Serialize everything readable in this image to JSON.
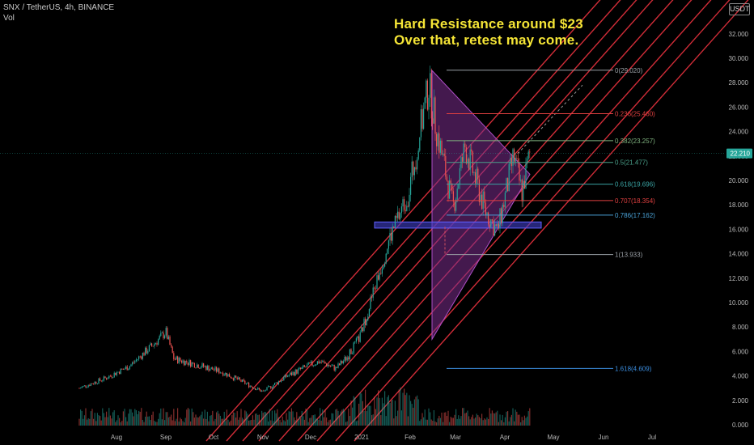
{
  "header": {
    "symbol": "SNX / TetherUS, 4h, BINANCE",
    "volume_label": "Vol",
    "currency_badge": "USDT"
  },
  "annotation": {
    "line1": "Hard Resistance around $23",
    "line2": "Over that, retest may come."
  },
  "colors": {
    "background": "#000000",
    "channel_lines": "#e8323f",
    "candle_up": "#26a69a",
    "candle_down": "#ef5350",
    "triangle_fill": "#7b2d8e",
    "support_zone": "#3f3fc8",
    "annotation_text": "#f5e536",
    "price_badge": "#26a69a"
  },
  "chart_data": {
    "type": "candlestick",
    "symbol": "SNX / TetherUS",
    "timeframe": "4h",
    "exchange": "BINANCE",
    "x_tick_labels": [
      "Aug",
      "Sep",
      "Oct",
      "Nov",
      "Dec",
      "2021",
      "Feb",
      "Mar",
      "Apr",
      "May",
      "Jun",
      "Jul"
    ],
    "y_tick_labels": [
      "0.000",
      "2.000",
      "4.000",
      "6.000",
      "8.000",
      "10.000",
      "12.000",
      "14.000",
      "16.000",
      "18.000",
      "20.000",
      "22.000",
      "24.000",
      "26.000",
      "28.000",
      "30.000",
      "32.000"
    ],
    "ylim": [
      0,
      33.5
    ],
    "current_price_label": "22.210",
    "current_price": 22.21,
    "price_path": [
      [
        "Jul",
        3.0
      ],
      [
        "Aug",
        3.8
      ],
      [
        "Aug",
        4.8
      ],
      [
        "Sep",
        6.6
      ],
      [
        "Sep",
        7.6
      ],
      [
        "Sep",
        5.4
      ],
      [
        "Oct",
        4.8
      ],
      [
        "Oct",
        4.3
      ],
      [
        "Oct",
        3.5
      ],
      [
        "Nov",
        2.7
      ],
      [
        "Nov",
        4.0
      ],
      [
        "Nov",
        4.8
      ],
      [
        "Dec",
        5.2
      ],
      [
        "Dec",
        4.6
      ],
      [
        "Dec",
        5.6
      ],
      [
        "2021",
        7.2
      ],
      [
        "2021",
        10.5
      ],
      [
        "2021",
        15.0
      ],
      [
        "Feb",
        19.0
      ],
      [
        "Feb",
        27.8
      ],
      [
        "Feb",
        24.0
      ],
      [
        "Mar",
        17.8
      ],
      [
        "Mar",
        22.8
      ],
      [
        "Mar",
        17.5
      ],
      [
        "Apr",
        15.8
      ],
      [
        "Apr",
        22.0
      ],
      [
        "Apr",
        19.0
      ],
      [
        "Apr",
        22.2
      ]
    ],
    "fibonacci_levels": [
      {
        "label": "0(29.020)",
        "level": 0,
        "price": 29.02
      },
      {
        "label": "0.236(25.460)",
        "level": 0.236,
        "price": 25.46
      },
      {
        "label": "0.382(23.257)",
        "level": 0.382,
        "price": 23.257
      },
      {
        "label": "0.5(21.477)",
        "level": 0.5,
        "price": 21.477
      },
      {
        "label": "0.618(19.696)",
        "level": 0.618,
        "price": 19.696
      },
      {
        "label": "0.707(18.354)",
        "level": 0.707,
        "price": 18.354
      },
      {
        "label": "0.786(17.162)",
        "level": 0.786,
        "price": 17.162
      },
      {
        "label": "1(13.933)",
        "level": 1,
        "price": 13.933
      },
      {
        "label": "1.618(4.609)",
        "level": 1.618,
        "price": 4.609
      }
    ],
    "support_zone": [
      16.1,
      16.6
    ],
    "grid": false
  }
}
